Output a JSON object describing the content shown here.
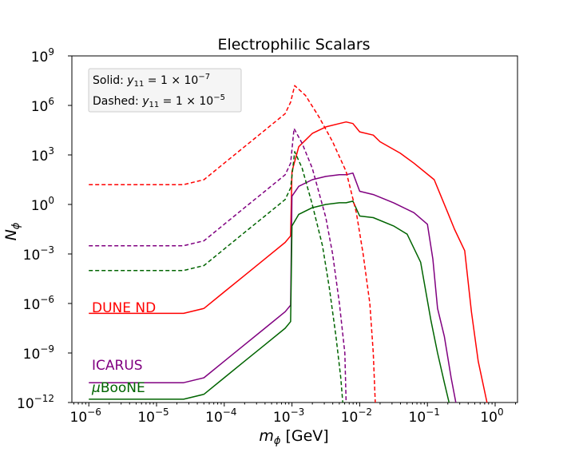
{
  "chart_data": {
    "type": "line",
    "title": "Electrophilic Scalars",
    "xlabel": "m_phi [GeV]",
    "ylabel": "N_phi",
    "xscale": "log",
    "yscale": "log",
    "xlim_log10": [
      -6.25,
      0.33
    ],
    "ylim_log10": [
      -12,
      9
    ],
    "xticks_log10": [
      -6,
      -5,
      -4,
      -3,
      -2,
      -1,
      0
    ],
    "yticks_log10": [
      -12,
      -9,
      -6,
      -3,
      0,
      3,
      6,
      9
    ],
    "grid": false,
    "legend_box": {
      "solid": "Solid: y11 = 1 × 10^-7",
      "dashed": "Dashed: y11 = 1 × 10^-5",
      "placement": "top-left"
    },
    "series": [
      {
        "name": "DUNE ND",
        "color": "#ff0000",
        "style": "solid",
        "y11": "1e-7",
        "points_log10": [
          [
            -6,
            -6.6
          ],
          [
            -5.5,
            -6.6
          ],
          [
            -5,
            -6.6
          ],
          [
            -4.6,
            -6.6
          ],
          [
            -4.3,
            -6.3
          ],
          [
            -4,
            -5.3
          ],
          [
            -3.7,
            -4.3
          ],
          [
            -3.4,
            -3.3
          ],
          [
            -3.1,
            -2.3
          ],
          [
            -3.02,
            -1.9
          ],
          [
            -3,
            2
          ],
          [
            -2.9,
            3.5
          ],
          [
            -2.7,
            4.3
          ],
          [
            -2.5,
            4.7
          ],
          [
            -2.3,
            4.9
          ],
          [
            -2.2,
            5
          ],
          [
            -2.1,
            4.9
          ],
          [
            -2,
            4.4
          ],
          [
            -1.8,
            4.2
          ],
          [
            -1.7,
            3.8
          ],
          [
            -1.4,
            3.1
          ],
          [
            -1.2,
            2.5
          ],
          [
            -0.9,
            1.5
          ],
          [
            -0.8,
            0.5
          ],
          [
            -0.7,
            -0.5
          ],
          [
            -0.6,
            -1.5
          ],
          [
            -0.45,
            -2.8
          ],
          [
            -0.35,
            -6.5
          ],
          [
            -0.25,
            -9.5
          ],
          [
            -0.12,
            -12
          ]
        ]
      },
      {
        "name": "ICARUS",
        "color": "#800080",
        "style": "solid",
        "y11": "1e-7",
        "points_log10": [
          [
            -6,
            -10.8
          ],
          [
            -5.5,
            -10.8
          ],
          [
            -5,
            -10.8
          ],
          [
            -4.6,
            -10.8
          ],
          [
            -4.3,
            -10.5
          ],
          [
            -4,
            -9.5
          ],
          [
            -3.7,
            -8.5
          ],
          [
            -3.4,
            -7.5
          ],
          [
            -3.1,
            -6.5
          ],
          [
            -3.02,
            -6.1
          ],
          [
            -3,
            0.5
          ],
          [
            -2.9,
            1.1
          ],
          [
            -2.7,
            1.5
          ],
          [
            -2.5,
            1.7
          ],
          [
            -2.3,
            1.8
          ],
          [
            -2.2,
            1.8
          ],
          [
            -2.1,
            1.9
          ],
          [
            -2,
            0.8
          ],
          [
            -1.8,
            0.6
          ],
          [
            -1.5,
            0.1
          ],
          [
            -1.2,
            -0.5
          ],
          [
            -1.0,
            -1.2
          ],
          [
            -0.92,
            -3.3
          ],
          [
            -0.85,
            -6.3
          ],
          [
            -0.75,
            -8
          ],
          [
            -0.65,
            -10.5
          ],
          [
            -0.58,
            -12
          ]
        ]
      },
      {
        "name": "μBooNE",
        "color": "#006400",
        "style": "solid",
        "y11": "1e-7",
        "points_log10": [
          [
            -6,
            -11.8
          ],
          [
            -5.5,
            -11.8
          ],
          [
            -5,
            -11.8
          ],
          [
            -4.6,
            -11.8
          ],
          [
            -4.3,
            -11.5
          ],
          [
            -4,
            -10.5
          ],
          [
            -3.7,
            -9.5
          ],
          [
            -3.4,
            -8.5
          ],
          [
            -3.1,
            -7.5
          ],
          [
            -3.02,
            -7.1
          ],
          [
            -3,
            -1.3
          ],
          [
            -2.9,
            -0.6
          ],
          [
            -2.7,
            -0.2
          ],
          [
            -2.5,
            0
          ],
          [
            -2.3,
            0.1
          ],
          [
            -2.2,
            0.1
          ],
          [
            -2.1,
            0.2
          ],
          [
            -2,
            -0.7
          ],
          [
            -1.8,
            -0.8
          ],
          [
            -1.5,
            -1.3
          ],
          [
            -1.3,
            -1.8
          ],
          [
            -1.1,
            -3.5
          ],
          [
            -0.95,
            -7
          ],
          [
            -0.85,
            -9
          ],
          [
            -0.75,
            -10.8
          ],
          [
            -0.68,
            -12
          ]
        ]
      },
      {
        "name": "DUNE ND",
        "color": "#ff0000",
        "style": "dashed",
        "y11": "1e-5",
        "points_log10": [
          [
            -6,
            1.2
          ],
          [
            -5.5,
            1.2
          ],
          [
            -5,
            1.2
          ],
          [
            -4.6,
            1.2
          ],
          [
            -4.3,
            1.5
          ],
          [
            -4,
            2.5
          ],
          [
            -3.7,
            3.5
          ],
          [
            -3.4,
            4.5
          ],
          [
            -3.1,
            5.5
          ],
          [
            -3.02,
            6.2
          ],
          [
            -2.96,
            7.2
          ],
          [
            -2.8,
            6.6
          ],
          [
            -2.6,
            5.3
          ],
          [
            -2.4,
            3.8
          ],
          [
            -2.2,
            2
          ],
          [
            -2.05,
            -0.5
          ],
          [
            -1.95,
            -3
          ],
          [
            -1.85,
            -6
          ],
          [
            -1.8,
            -9
          ],
          [
            -1.77,
            -12
          ]
        ]
      },
      {
        "name": "ICARUS",
        "color": "#800080",
        "style": "dashed",
        "y11": "1e-5",
        "points_log10": [
          [
            -6,
            -2.5
          ],
          [
            -5.5,
            -2.5
          ],
          [
            -5,
            -2.5
          ],
          [
            -4.6,
            -2.5
          ],
          [
            -4.3,
            -2.2
          ],
          [
            -4,
            -1.2
          ],
          [
            -3.7,
            -0.2
          ],
          [
            -3.4,
            0.8
          ],
          [
            -3.1,
            1.8
          ],
          [
            -3.02,
            2.5
          ],
          [
            -2.97,
            4.6
          ],
          [
            -2.85,
            3.7
          ],
          [
            -2.7,
            2.2
          ],
          [
            -2.5,
            -0.8
          ],
          [
            -2.4,
            -3
          ],
          [
            -2.3,
            -6
          ],
          [
            -2.22,
            -9
          ],
          [
            -2.2,
            -12
          ]
        ]
      },
      {
        "name": "μBooNE",
        "color": "#006400",
        "style": "dashed",
        "y11": "1e-5",
        "points_log10": [
          [
            -6,
            -4
          ],
          [
            -5.5,
            -4
          ],
          [
            -5,
            -4
          ],
          [
            -4.6,
            -4
          ],
          [
            -4.3,
            -3.7
          ],
          [
            -4,
            -2.7
          ],
          [
            -3.7,
            -1.7
          ],
          [
            -3.4,
            -0.7
          ],
          [
            -3.1,
            0.3
          ],
          [
            -3.02,
            1
          ],
          [
            -2.96,
            3.2
          ],
          [
            -2.85,
            2.2
          ],
          [
            -2.7,
            0
          ],
          [
            -2.55,
            -2.5
          ],
          [
            -2.45,
            -5
          ],
          [
            -2.35,
            -8
          ],
          [
            -2.28,
            -10.5
          ],
          [
            -2.25,
            -12
          ]
        ]
      }
    ],
    "annotations": [
      {
        "text": "DUNE ND",
        "color": "#ff0000"
      },
      {
        "text": "ICARUS",
        "color": "#800080"
      },
      {
        "text": "μBooNE",
        "color": "#006400"
      }
    ]
  }
}
